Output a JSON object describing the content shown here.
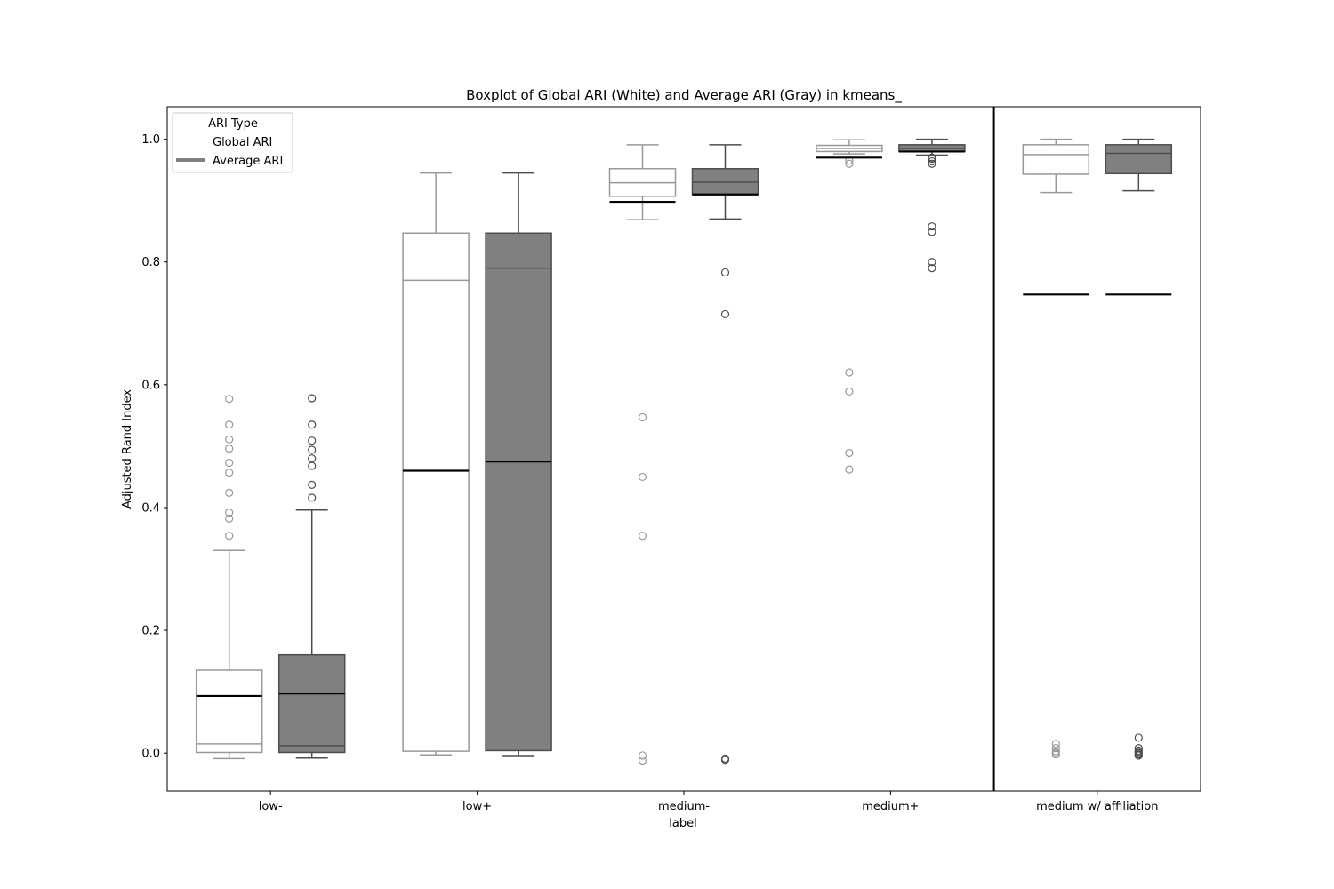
{
  "chart_data": {
    "type": "box",
    "title": "Boxplot of Global ARI (White) and Average ARI (Gray) in kmeans_",
    "xlabel": "label",
    "ylabel": "Adjusted Rand Index",
    "ylim": [
      -0.062,
      1.053
    ],
    "yticks": [
      0.0,
      0.2,
      0.4,
      0.6,
      0.8,
      1.0
    ],
    "ytick_labels": [
      "0.0",
      "0.2",
      "0.4",
      "0.6",
      "0.8",
      "1.0"
    ],
    "categories": [
      "low-",
      "low+",
      "medium-",
      "medium+",
      "medium w/ affiliation"
    ],
    "legend": {
      "title": "ARI Type",
      "position": "top-left",
      "entries": [
        {
          "label": "Global ARI",
          "color": "#ffffff"
        },
        {
          "label": "Average ARI",
          "color": "#808080"
        }
      ]
    },
    "separator_after_category": "medium+",
    "mean_line_color": "#000000",
    "series": [
      {
        "name": "Global ARI",
        "fill": "#ffffff",
        "edge": "#999999",
        "boxes": [
          {
            "whislo": -0.009,
            "q1": 0.001,
            "med": 0.015,
            "q3": 0.135,
            "whishi": 0.33,
            "mean": 0.093,
            "fliers": [
              0.354,
              0.382,
              0.392,
              0.424,
              0.457,
              0.473,
              0.496,
              0.511,
              0.535,
              0.577
            ]
          },
          {
            "whislo": -0.003,
            "q1": 0.003,
            "med": 0.77,
            "q3": 0.847,
            "whishi": 0.945,
            "mean": 0.46,
            "fliers": []
          },
          {
            "whislo": 0.869,
            "q1": 0.907,
            "med": 0.929,
            "q3": 0.952,
            "whishi": 0.991,
            "mean": 0.898,
            "fliers": [
              -0.012,
              -0.004,
              0.354,
              0.45,
              0.547
            ]
          },
          {
            "whislo": 0.976,
            "q1": 0.98,
            "med": 0.985,
            "q3": 0.99,
            "whishi": 0.999,
            "mean": 0.97,
            "fliers": [
              0.462,
              0.489,
              0.589,
              0.62,
              0.96,
              0.965
            ]
          },
          {
            "whislo": 0.913,
            "q1": 0.943,
            "med": 0.975,
            "q3": 0.991,
            "whishi": 1.0,
            "mean": 0.747,
            "fliers": [
              -0.002,
              0.0,
              0.003,
              0.008,
              0.015
            ]
          }
        ]
      },
      {
        "name": "Average ARI",
        "fill": "#808080",
        "edge": "#4d4d4d",
        "boxes": [
          {
            "whislo": -0.008,
            "q1": 0.001,
            "med": 0.012,
            "q3": 0.16,
            "whishi": 0.396,
            "mean": 0.097,
            "fliers": [
              0.416,
              0.437,
              0.468,
              0.48,
              0.494,
              0.509,
              0.535,
              0.578
            ]
          },
          {
            "whislo": -0.004,
            "q1": 0.004,
            "med": 0.79,
            "q3": 0.847,
            "whishi": 0.945,
            "mean": 0.475,
            "fliers": []
          },
          {
            "whislo": 0.87,
            "q1": 0.91,
            "med": 0.93,
            "q3": 0.952,
            "whishi": 0.991,
            "mean": 0.91,
            "fliers": [
              -0.011,
              -0.009,
              0.715,
              0.783
            ]
          },
          {
            "whislo": 0.974,
            "q1": 0.98,
            "med": 0.985,
            "q3": 0.991,
            "whishi": 1.0,
            "mean": 0.98,
            "fliers": [
              0.79,
              0.8,
              0.849,
              0.858,
              0.96,
              0.964,
              0.968,
              0.97
            ]
          },
          {
            "whislo": 0.916,
            "q1": 0.944,
            "med": 0.977,
            "q3": 0.991,
            "whishi": 1.0,
            "mean": 0.747,
            "fliers": [
              -0.004,
              -0.002,
              0.0,
              0.002,
              0.004,
              0.008,
              0.025
            ]
          }
        ]
      }
    ]
  }
}
